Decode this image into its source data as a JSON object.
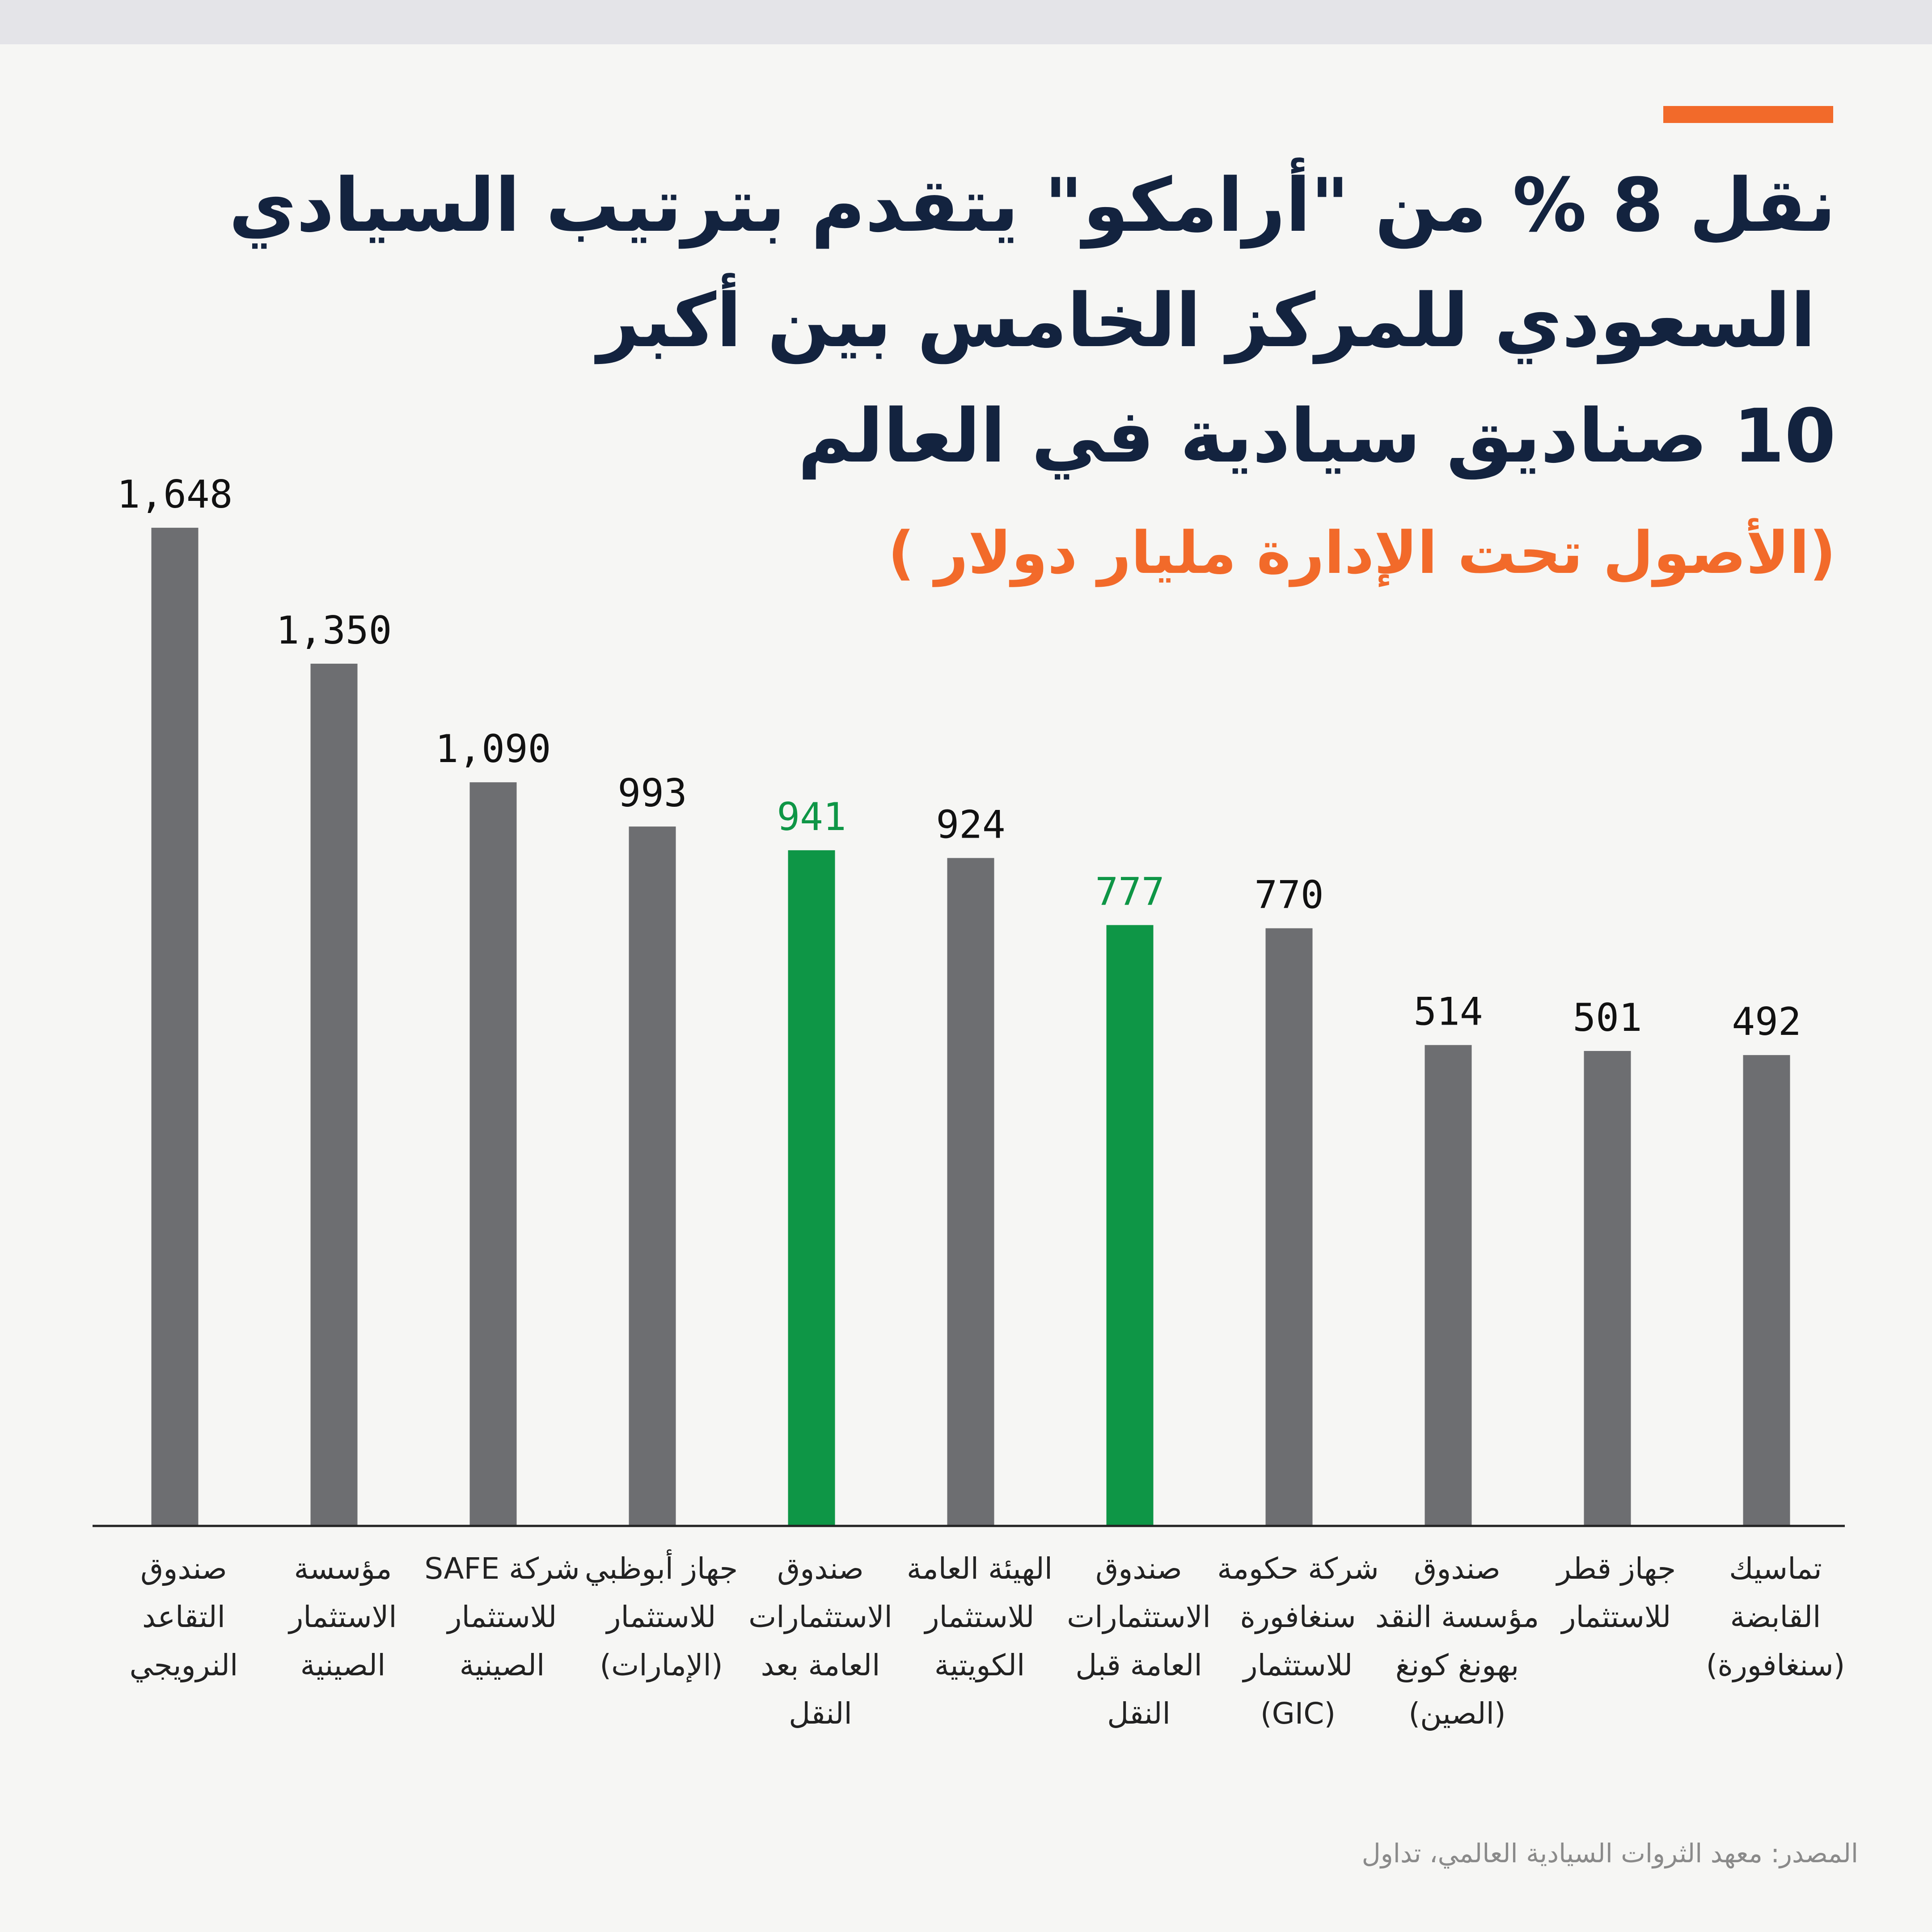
{
  "header": {
    "title_lines": [
      "نقل 8 % من \"أرامكو\" يتقدم بترتيب السيادي",
      "السعودي للمركز الخامس بين أكبر",
      "10 صناديق سيادية في العالم"
    ],
    "subtitle": "(الأصول تحت الإدارة مليار دولار )"
  },
  "colors": {
    "default_bar": "#6d6e71",
    "highlight_bar": "#0e9646",
    "title": "#13233f",
    "accent": "#f26a2a"
  },
  "chart_data": {
    "type": "bar",
    "title": "",
    "xlabel": "",
    "ylabel": "",
    "grid": false,
    "categories": [
      [
        "صندوق",
        "التقاعد",
        "النرويجي"
      ],
      [
        "مؤسسة",
        "الاستثمار",
        "الصينية"
      ],
      [
        "شركة SAFE",
        "للاستثمار",
        "الصينية"
      ],
      [
        "جهاز أبوظبي",
        "للاستثمار",
        "(الإمارات)"
      ],
      [
        "صندوق",
        "الاستثمارات",
        "العامة بعد",
        "النقل"
      ],
      [
        "الهيئة العامة",
        "للاستثمار",
        "الكويتية"
      ],
      [
        "صندوق",
        "الاستثمارات",
        "العامة قبل",
        "النقل"
      ],
      [
        "شركة حكومة",
        "سنغافورة",
        "للاستثمار",
        "(GIC)"
      ],
      [
        "صندوق",
        "مؤسسة النقد",
        "بهونغ كونغ",
        "(الصين)"
      ],
      [
        "جهاز قطر",
        "للاستثمار"
      ],
      [
        "تماسيك",
        "القابضة",
        "(سنغافورة)"
      ]
    ],
    "values": [
      1648,
      1350,
      1090,
      993,
      941,
      924,
      777,
      770,
      514,
      501,
      492
    ],
    "value_labels": [
      "1,648",
      "1,350",
      "1,090",
      "993",
      "941",
      "924",
      "777",
      "770",
      "514",
      "501",
      "492"
    ],
    "highlighted": [
      false,
      false,
      false,
      false,
      true,
      false,
      true,
      false,
      false,
      false,
      false
    ]
  },
  "footer": {
    "source": "المصدر: معهد الثروات السيادية العالمي، تداول"
  }
}
